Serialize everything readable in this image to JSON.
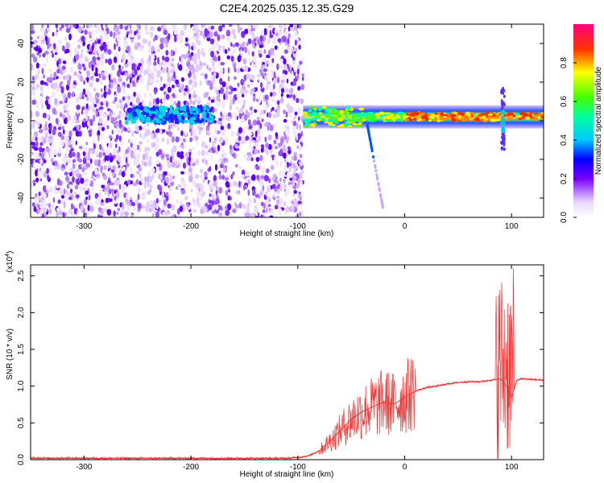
{
  "figure": {
    "title": "C2E4.2025.035.12.35.G29"
  },
  "chart_data": [
    {
      "type": "heatmap",
      "title": "C2E4.2025.035.12.35.G29",
      "xlabel": "Height of straight line (km)",
      "ylabel": "Frequency (Hz)",
      "xlim": [
        -350,
        130
      ],
      "ylim": [
        -50,
        50
      ],
      "xticks": [
        -300,
        -200,
        -100,
        0,
        100
      ],
      "yticks": [
        -40,
        -20,
        0,
        20,
        40
      ],
      "colorbar": {
        "label": "Normalized spectral amplitude",
        "range": [
          0.0,
          1.0
        ],
        "ticks": [
          0.0,
          0.2,
          0.4,
          0.6,
          0.8
        ],
        "colormap": "rainbow (white-violet-blue-cyan-green-yellow-red-magenta)"
      },
      "description_regions": [
        {
          "x_range": [
            -350,
            -95
          ],
          "freq_range": [
            -50,
            50
          ],
          "amplitude": "low (0.1-0.25), noise"
        },
        {
          "x_range": [
            -260,
            -180
          ],
          "freq_range": [
            0,
            10
          ],
          "amplitude": "medium (0.3-0.4)"
        },
        {
          "x_range": [
            -95,
            130
          ],
          "freq_range": [
            -5,
            8
          ],
          "amplitude": "high (0.6-1.0) at ~2 Hz"
        }
      ]
    },
    {
      "type": "line",
      "xlabel": "Height of straight line (km)",
      "ylabel": "SNR (10 * v/v)",
      "yscale_label": "(x10",
      "yscale_exp": "4",
      "xlim": [
        -350,
        130
      ],
      "ylim": [
        0,
        2.65
      ],
      "xticks": [
        -300,
        -200,
        -100,
        0,
        100
      ],
      "yticks": [
        "0.0",
        "0.5",
        "1.0",
        "1.5",
        "2.0",
        "2.5"
      ],
      "series": [
        {
          "color": "#ee3333",
          "x": [
            -350,
            -300,
            -250,
            -200,
            -150,
            -110,
            -100,
            -90,
            -80,
            -70,
            -60,
            -50,
            -40,
            -30,
            -20,
            -10,
            0,
            10,
            20,
            30,
            40,
            50,
            60,
            70,
            80,
            90,
            95,
            100,
            105,
            110,
            120,
            130
          ],
          "y": [
            0.02,
            0.02,
            0.02,
            0.02,
            0.02,
            0.02,
            0.03,
            0.05,
            0.12,
            0.25,
            0.4,
            0.55,
            0.65,
            0.72,
            0.78,
            0.75,
            0.85,
            0.93,
            0.98,
            1.0,
            1.03,
            1.05,
            1.06,
            1.06,
            1.08,
            1.1,
            1.0,
            0.85,
            1.08,
            1.1,
            1.09,
            1.08
          ]
        }
      ]
    }
  ]
}
